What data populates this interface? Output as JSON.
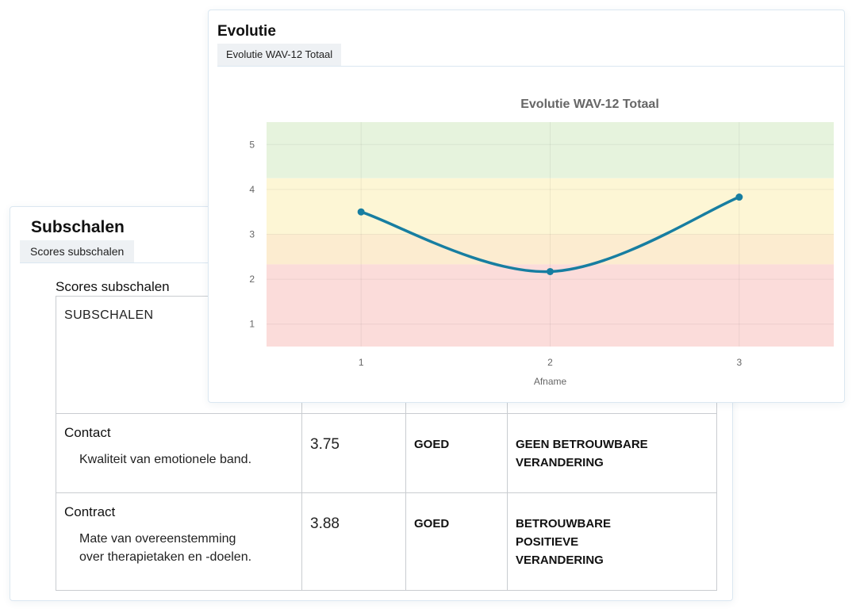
{
  "subschalen": {
    "title": "Subschalen",
    "tab_label": "Scores subschalen",
    "table_caption": "Scores subschalen",
    "table_header": "SUBSCHALEN",
    "rows": [
      {
        "name": "Contact",
        "description": "Kwaliteit van emotionele band.",
        "score": "3.75",
        "rating": "GOED",
        "change_lines": [
          "GEEN BETROUWBARE",
          "VERANDERING"
        ]
      },
      {
        "name": "Contract",
        "description_lines": [
          "Mate van overeenstemming",
          "over therapietaken en -doelen."
        ],
        "score": "3.88",
        "rating": "GOED",
        "change_lines": [
          "BETROUWBARE",
          "POSITIEVE",
          "VERANDERING"
        ]
      }
    ]
  },
  "evolutie": {
    "title": "Evolutie",
    "tab_label": "Evolutie WAV-12 Totaal"
  },
  "chart_data": {
    "type": "line",
    "title": "Evolutie WAV-12 Totaal",
    "xlabel": "Afname",
    "ylabel": "",
    "x": [
      1,
      2,
      3
    ],
    "x_tick_labels": [
      "1",
      "2",
      "3"
    ],
    "y_tick_labels": [
      "1",
      "2",
      "3",
      "4",
      "5"
    ],
    "xlim": [
      0.5,
      3.5
    ],
    "ylim": [
      0.5,
      5.5
    ],
    "grid": true,
    "series": [
      {
        "values": [
          3.5,
          2.17,
          3.83
        ],
        "color": "#177ea1"
      }
    ],
    "bands": [
      {
        "from": 4.25,
        "to": 5.5,
        "color": "#e6f3dd"
      },
      {
        "from": 3.0,
        "to": 4.25,
        "color": "#fdf6d5"
      },
      {
        "from": 2.33,
        "to": 3.0,
        "color": "#fcecd0"
      },
      {
        "from": 0.5,
        "to": 2.33,
        "color": "#fbdcda"
      }
    ]
  }
}
